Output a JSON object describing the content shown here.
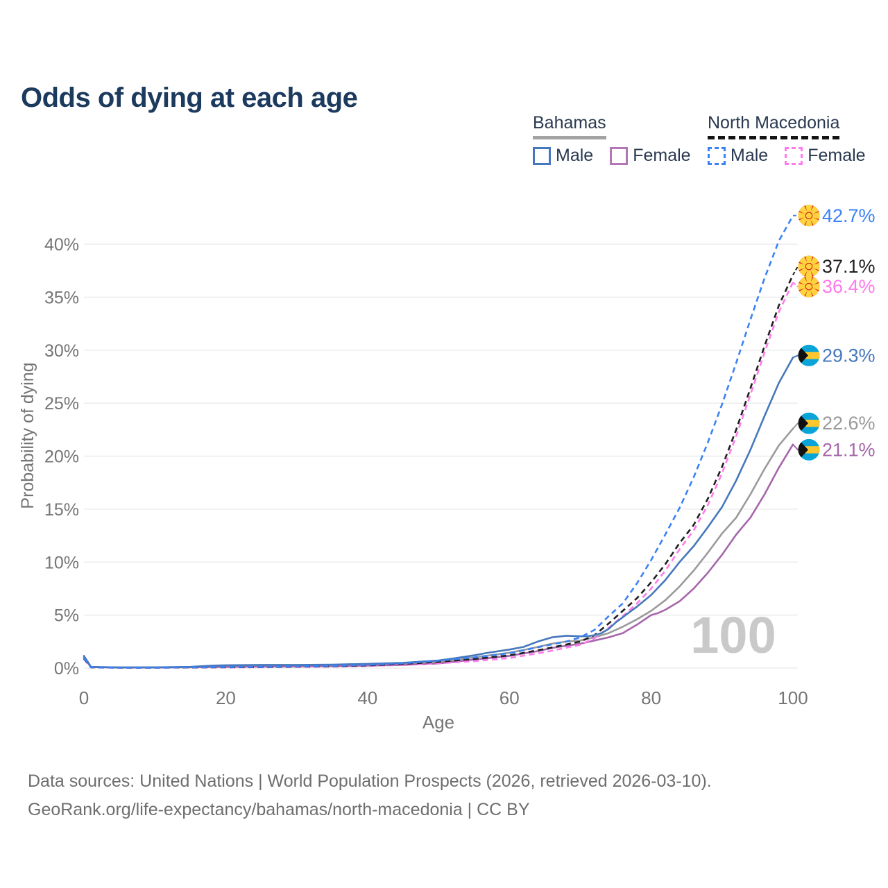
{
  "title": "Odds of dying at each age",
  "watermark": "100",
  "legend": {
    "groups": [
      {
        "country": "Bahamas",
        "underline_style": "solid",
        "underline_color": "#a3a3a3",
        "items": [
          {
            "label": "Male",
            "color": "#4678bc",
            "dashed": false
          },
          {
            "label": "Female",
            "color": "#b377b8",
            "dashed": false
          }
        ]
      },
      {
        "country": "North Macedonia",
        "underline_style": "dashed",
        "underline_color": "#141414",
        "items": [
          {
            "label": "Male",
            "color": "#3b82f6",
            "dashed": true
          },
          {
            "label": "Female",
            "color": "#ff7aec",
            "dashed": true
          }
        ]
      }
    ]
  },
  "footer": {
    "line1": "Data sources: United Nations | World Population Prospects (2026, retrieved 2026-03-10).",
    "line2": "GeoRank.org/life-expectancy/bahamas/north-macedonia | CC BY"
  },
  "chart_data": {
    "type": "line",
    "title": "Odds of dying at each age",
    "xlabel": "Age",
    "ylabel": "Probability of dying",
    "xlim": [
      0,
      100
    ],
    "ylim_pct": [
      0,
      40
    ],
    "x_ticks": [
      0,
      20,
      40,
      60,
      80,
      100
    ],
    "y_ticks_pct": [
      0,
      5,
      10,
      15,
      20,
      25,
      30,
      35,
      40
    ],
    "grid": "horizontal",
    "legend_position": "top-right",
    "colors": {
      "grid": "#ececec",
      "axis_text": "#757575",
      "watermark": "#c9c9c9",
      "title": "#1c3a5e"
    },
    "series": [
      {
        "name": "bahamas-both",
        "country": "Bahamas",
        "sex": "Both",
        "color": "#9a9a9a",
        "dashed": false,
        "end_label": "22.6%",
        "end_value": 22.6,
        "label_pos_pct": 23.1,
        "flag": "bahamas",
        "points": [
          [
            0,
            1.05
          ],
          [
            1,
            0.1
          ],
          [
            5,
            0.06
          ],
          [
            10,
            0.06
          ],
          [
            15,
            0.1
          ],
          [
            20,
            0.18
          ],
          [
            25,
            0.21
          ],
          [
            30,
            0.22
          ],
          [
            35,
            0.25
          ],
          [
            40,
            0.31
          ],
          [
            45,
            0.4
          ],
          [
            50,
            0.57
          ],
          [
            55,
            1.0
          ],
          [
            60,
            1.45
          ],
          [
            62,
            1.7
          ],
          [
            64,
            2.0
          ],
          [
            66,
            2.3
          ],
          [
            68,
            2.5
          ],
          [
            70,
            2.6
          ],
          [
            72,
            2.9
          ],
          [
            74,
            3.3
          ],
          [
            76,
            3.9
          ],
          [
            78,
            4.6
          ],
          [
            80,
            5.4
          ],
          [
            82,
            6.4
          ],
          [
            84,
            7.7
          ],
          [
            86,
            9.2
          ],
          [
            88,
            10.9
          ],
          [
            90,
            12.7
          ],
          [
            92,
            14.2
          ],
          [
            94,
            16.4
          ],
          [
            96,
            18.8
          ],
          [
            98,
            21.0
          ],
          [
            100,
            22.6
          ]
        ]
      },
      {
        "name": "bahamas-female",
        "country": "Bahamas",
        "sex": "Female",
        "color": "#a566aa",
        "dashed": false,
        "end_label": "21.1%",
        "end_value": 21.1,
        "label_pos_pct": 20.6,
        "flag": "bahamas",
        "points": [
          [
            0,
            0.95
          ],
          [
            1,
            0.09
          ],
          [
            5,
            0.05
          ],
          [
            10,
            0.05
          ],
          [
            15,
            0.08
          ],
          [
            20,
            0.11
          ],
          [
            25,
            0.13
          ],
          [
            30,
            0.15
          ],
          [
            35,
            0.18
          ],
          [
            40,
            0.23
          ],
          [
            45,
            0.3
          ],
          [
            50,
            0.44
          ],
          [
            55,
            0.8
          ],
          [
            60,
            1.15
          ],
          [
            64,
            1.6
          ],
          [
            66,
            1.9
          ],
          [
            68,
            2.1
          ],
          [
            70,
            2.3
          ],
          [
            72,
            2.6
          ],
          [
            74,
            2.9
          ],
          [
            76,
            3.3
          ],
          [
            78,
            4.1
          ],
          [
            80,
            5.0
          ],
          [
            81,
            5.2
          ],
          [
            82,
            5.5
          ],
          [
            84,
            6.3
          ],
          [
            86,
            7.5
          ],
          [
            88,
            9.0
          ],
          [
            90,
            10.7
          ],
          [
            92,
            12.6
          ],
          [
            94,
            14.2
          ],
          [
            96,
            16.4
          ],
          [
            98,
            18.9
          ],
          [
            100,
            21.1
          ]
        ]
      },
      {
        "name": "north-macedonia-female",
        "country": "North Macedonia",
        "sex": "Female",
        "color": "#ff7aec",
        "dashed": true,
        "end_label": "36.4%",
        "end_value": 36.4,
        "label_pos_pct": 36.0,
        "flag": "north-macedonia",
        "points": [
          [
            0,
            0.85
          ],
          [
            1,
            0.06
          ],
          [
            5,
            0.03
          ],
          [
            10,
            0.03
          ],
          [
            15,
            0.05
          ],
          [
            20,
            0.06
          ],
          [
            25,
            0.08
          ],
          [
            30,
            0.1
          ],
          [
            35,
            0.14
          ],
          [
            40,
            0.2
          ],
          [
            45,
            0.3
          ],
          [
            50,
            0.45
          ],
          [
            55,
            0.65
          ],
          [
            60,
            0.95
          ],
          [
            65,
            1.5
          ],
          [
            70,
            2.2
          ],
          [
            72,
            2.8
          ],
          [
            74,
            3.8
          ],
          [
            76,
            4.9
          ],
          [
            78,
            6.1
          ],
          [
            80,
            7.5
          ],
          [
            82,
            9.2
          ],
          [
            84,
            11.2
          ],
          [
            86,
            13.0
          ],
          [
            88,
            15.4
          ],
          [
            90,
            18.4
          ],
          [
            92,
            21.9
          ],
          [
            94,
            25.8
          ],
          [
            96,
            29.8
          ],
          [
            98,
            33.6
          ],
          [
            100,
            36.4
          ]
        ]
      },
      {
        "name": "north-macedonia-both",
        "country": "North Macedonia",
        "sex": "Both",
        "color": "#1f1f1f",
        "dashed": true,
        "end_label": "37.1%",
        "end_value": 37.1,
        "label_pos_pct": 37.9,
        "flag": "north-macedonia",
        "points": [
          [
            0,
            0.9
          ],
          [
            1,
            0.07
          ],
          [
            5,
            0.04
          ],
          [
            10,
            0.04
          ],
          [
            15,
            0.06
          ],
          [
            20,
            0.08
          ],
          [
            25,
            0.1
          ],
          [
            30,
            0.13
          ],
          [
            35,
            0.17
          ],
          [
            40,
            0.25
          ],
          [
            45,
            0.38
          ],
          [
            50,
            0.58
          ],
          [
            55,
            0.85
          ],
          [
            60,
            1.2
          ],
          [
            65,
            1.8
          ],
          [
            70,
            2.5
          ],
          [
            72,
            3.1
          ],
          [
            74,
            4.2
          ],
          [
            76,
            5.4
          ],
          [
            78,
            6.6
          ],
          [
            80,
            8.1
          ],
          [
            82,
            9.8
          ],
          [
            84,
            11.8
          ],
          [
            86,
            13.5
          ],
          [
            88,
            16.0
          ],
          [
            90,
            19.0
          ],
          [
            92,
            22.5
          ],
          [
            94,
            26.4
          ],
          [
            96,
            30.4
          ],
          [
            98,
            34.2
          ],
          [
            100,
            37.1
          ]
        ]
      },
      {
        "name": "bahamas-male",
        "country": "Bahamas",
        "sex": "Male",
        "color": "#4678bc",
        "dashed": false,
        "end_label": "29.3%",
        "end_value": 29.3,
        "label_pos_pct": 29.5,
        "flag": "bahamas",
        "points": [
          [
            0,
            1.15
          ],
          [
            1,
            0.12
          ],
          [
            5,
            0.06
          ],
          [
            10,
            0.07
          ],
          [
            15,
            0.12
          ],
          [
            18,
            0.22
          ],
          [
            20,
            0.27
          ],
          [
            25,
            0.3
          ],
          [
            30,
            0.3
          ],
          [
            35,
            0.33
          ],
          [
            40,
            0.4
          ],
          [
            45,
            0.5
          ],
          [
            50,
            0.72
          ],
          [
            52,
            0.9
          ],
          [
            55,
            1.2
          ],
          [
            57,
            1.45
          ],
          [
            60,
            1.75
          ],
          [
            62,
            2.0
          ],
          [
            64,
            2.5
          ],
          [
            66,
            2.9
          ],
          [
            68,
            3.05
          ],
          [
            70,
            3.0
          ],
          [
            71,
            3.0
          ],
          [
            72,
            3.1
          ],
          [
            73,
            3.3
          ],
          [
            74,
            3.7
          ],
          [
            75,
            4.3
          ],
          [
            76,
            4.8
          ],
          [
            77,
            5.3
          ],
          [
            78,
            5.8
          ],
          [
            80,
            6.9
          ],
          [
            82,
            8.3
          ],
          [
            84,
            10.0
          ],
          [
            86,
            11.5
          ],
          [
            88,
            13.3
          ],
          [
            90,
            15.2
          ],
          [
            92,
            17.7
          ],
          [
            94,
            20.6
          ],
          [
            96,
            23.8
          ],
          [
            98,
            26.9
          ],
          [
            100,
            29.3
          ]
        ]
      },
      {
        "name": "north-macedonia-male",
        "country": "North Macedonia",
        "sex": "Male",
        "color": "#3b82f6",
        "dashed": true,
        "end_label": "42.7%",
        "end_value": 42.7,
        "label_pos_pct": 42.7,
        "flag": "north-macedonia",
        "points": [
          [
            0,
            0.95
          ],
          [
            1,
            0.08
          ],
          [
            5,
            0.04
          ],
          [
            10,
            0.04
          ],
          [
            15,
            0.07
          ],
          [
            20,
            0.1
          ],
          [
            25,
            0.12
          ],
          [
            30,
            0.15
          ],
          [
            35,
            0.2
          ],
          [
            40,
            0.3
          ],
          [
            45,
            0.45
          ],
          [
            50,
            0.7
          ],
          [
            55,
            1.0
          ],
          [
            60,
            1.4
          ],
          [
            65,
            2.1
          ],
          [
            68,
            2.5
          ],
          [
            70,
            2.9
          ],
          [
            72,
            3.6
          ],
          [
            74,
            4.9
          ],
          [
            76,
            6.1
          ],
          [
            78,
            8.0
          ],
          [
            80,
            10.2
          ],
          [
            82,
            12.6
          ],
          [
            84,
            15.1
          ],
          [
            86,
            18.0
          ],
          [
            88,
            21.3
          ],
          [
            90,
            24.9
          ],
          [
            92,
            28.8
          ],
          [
            94,
            32.9
          ],
          [
            96,
            36.8
          ],
          [
            98,
            40.3
          ],
          [
            100,
            42.7
          ]
        ]
      }
    ]
  }
}
